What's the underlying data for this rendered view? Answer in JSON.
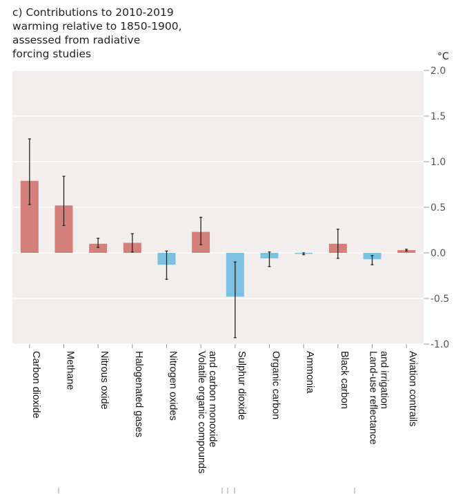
{
  "chart_data": {
    "type": "bar",
    "title": "c) Contributions to 2010-2019\nwarming relative to 1850-1900,\nassessed from radiative\nforcing studies",
    "unit": "°C",
    "ylim": [
      -1.0,
      2.0
    ],
    "yticks": [
      "2.0",
      "1.5",
      "1.0",
      "0.5",
      "0.0",
      "-0.5",
      "-1.0"
    ],
    "grid": true,
    "colors": {
      "warming": "#d4807a",
      "cooling": "#7dc1e0",
      "background": "#f2eeed",
      "grid": "#ffffff",
      "error_bar": "#222222"
    },
    "categories": [
      {
        "label": [
          "Carbon dioxide"
        ],
        "value": 0.79,
        "low": 0.53,
        "high": 1.25
      },
      {
        "label": [
          "Methane"
        ],
        "value": 0.52,
        "low": 0.3,
        "high": 0.84
      },
      {
        "label": [
          "Nitrous oxide"
        ],
        "value": 0.1,
        "low": 0.06,
        "high": 0.16
      },
      {
        "label": [
          "Halogenated gases"
        ],
        "value": 0.11,
        "low": 0.01,
        "high": 0.21
      },
      {
        "label": [
          "Nitrogen oxides"
        ],
        "value": -0.13,
        "low": -0.29,
        "high": 0.02
      },
      {
        "label": [
          "Volatile organic compounds",
          "and carbon monoxide"
        ],
        "value": 0.23,
        "low": 0.09,
        "high": 0.39
      },
      {
        "label": [
          "Sulphur dioxide"
        ],
        "value": -0.48,
        "low": -0.93,
        "high": -0.1
      },
      {
        "label": [
          "Organic carbon"
        ],
        "value": -0.06,
        "low": -0.15,
        "high": 0.01
      },
      {
        "label": [
          "Ammonia"
        ],
        "value": -0.01,
        "low": -0.02,
        "high": 0.0
      },
      {
        "label": [
          "Black carbon"
        ],
        "value": 0.1,
        "low": -0.06,
        "high": 0.26
      },
      {
        "label": [
          "Land-use reflectance",
          "and irrigation"
        ],
        "value": -0.07,
        "low": -0.13,
        "high": -0.03
      },
      {
        "label": [
          "Aviation contrails"
        ],
        "value": 0.03,
        "low": 0.02,
        "high": 0.04
      }
    ]
  }
}
